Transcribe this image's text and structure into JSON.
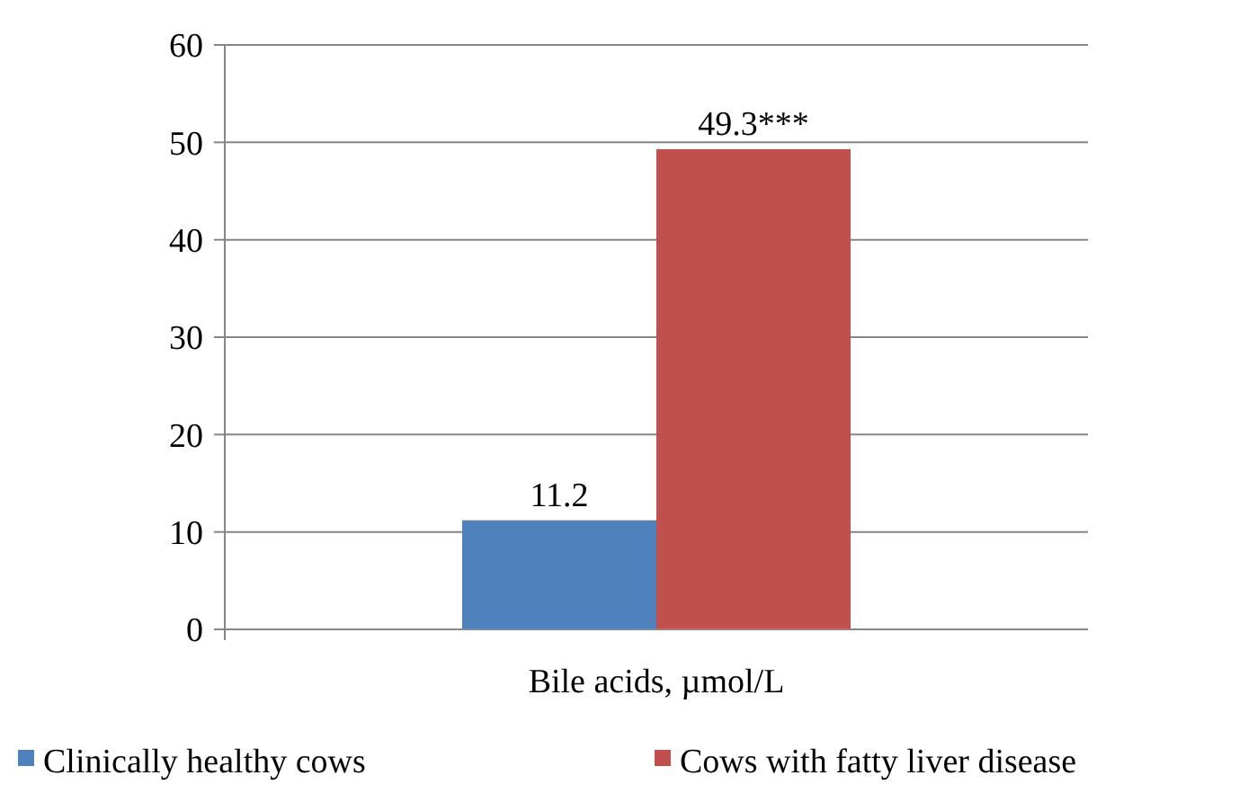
{
  "chart_data": {
    "type": "bar",
    "categories": [
      "Bile acids, µmol/L"
    ],
    "series": [
      {
        "name": "Clinically healthy cows",
        "color": "#4f81bd",
        "values": [
          11.2
        ],
        "value_labels": [
          "11.2"
        ]
      },
      {
        "name": "Cows with fatty liver disease",
        "color": "#c0504d",
        "values": [
          49.3
        ],
        "value_labels": [
          "49.3***"
        ]
      }
    ],
    "ylim": [
      0,
      60
    ],
    "yticks": [
      0,
      10,
      20,
      30,
      40,
      50,
      60
    ],
    "grid": "y",
    "legend": "bottom"
  }
}
